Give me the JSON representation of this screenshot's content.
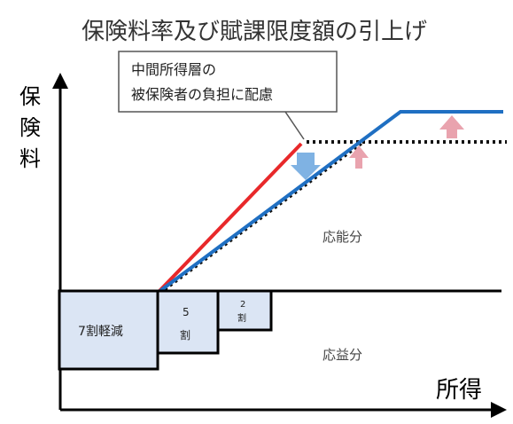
{
  "title": "保険料率及び賦課限度額の引上げ",
  "y_axis_label": "保険料",
  "x_axis_label": "所得",
  "callout": {
    "line1": "中間所得層の",
    "line2": "被保険者の負担に配慮"
  },
  "regions": {
    "upper": "応能分",
    "lower": "応益分"
  },
  "reduction_boxes": {
    "seven": "7割軽減",
    "five_top": "5",
    "five_bottom": "割",
    "two_top": "2",
    "two_bottom": "割"
  },
  "colors": {
    "red_line": "#e8282a",
    "blue_line": "#1f6fc2",
    "box_fill": "#dbe5f4",
    "arrow_down": "#7fb2e3",
    "arrow_up": "#e9a3ae"
  }
}
